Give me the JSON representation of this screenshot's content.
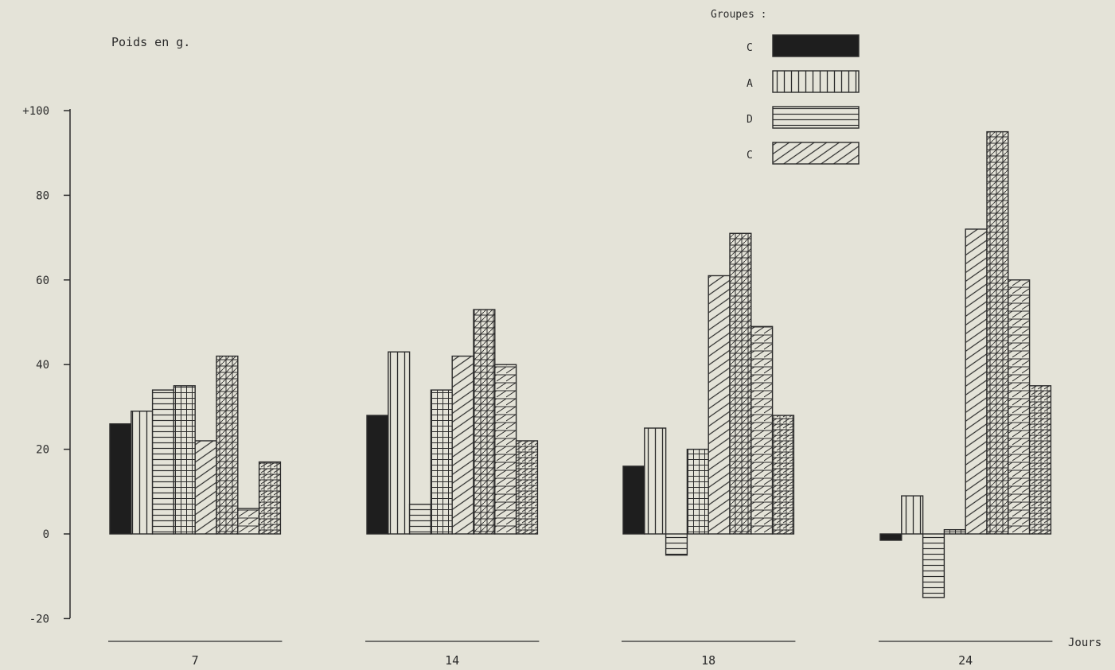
{
  "chart_data": {
    "type": "bar",
    "ylabel": "Poids en g.",
    "xlabel": "Jours",
    "ylim": [
      -20,
      100
    ],
    "yticks": [
      {
        "value": 100,
        "label": "+100"
      },
      {
        "value": 80,
        "label": "80"
      },
      {
        "value": 60,
        "label": "60"
      },
      {
        "value": 40,
        "label": "40"
      },
      {
        "value": 20,
        "label": "20"
      },
      {
        "value": 0,
        "label": "0"
      },
      {
        "value": -20,
        "label": "-20"
      }
    ],
    "categories": [
      "7",
      "14",
      "18",
      "24"
    ],
    "legend": {
      "title": "Groupes :",
      "placement": "top-right",
      "entries": [
        {
          "label": "C",
          "pattern": "solid"
        },
        {
          "label": "A",
          "pattern": "vertical"
        },
        {
          "label": "D",
          "pattern": "horizontal"
        },
        {
          "label": "C",
          "pattern": "diagonal"
        }
      ]
    },
    "series": [
      {
        "pattern": "solid",
        "values": [
          26,
          28,
          16,
          -1.5
        ]
      },
      {
        "pattern": "vertical",
        "values": [
          29,
          43,
          25,
          9
        ]
      },
      {
        "pattern": "horizontal",
        "values": [
          34,
          7,
          -5,
          -15
        ]
      },
      {
        "pattern": "grid",
        "values": [
          35,
          34,
          20,
          1
        ]
      },
      {
        "pattern": "diagonal",
        "values": [
          22,
          42,
          61,
          72
        ]
      },
      {
        "pattern": "diagonal-grid",
        "values": [
          42,
          53,
          71,
          95
        ]
      },
      {
        "pattern": "zigzag",
        "values": [
          6,
          40,
          49,
          60
        ]
      },
      {
        "pattern": "zigzag-dense",
        "values": [
          17,
          22,
          28,
          35
        ]
      }
    ],
    "grid": false
  },
  "colors": {
    "background": "#e4e3d8",
    "ink": "#2b2b2b"
  }
}
